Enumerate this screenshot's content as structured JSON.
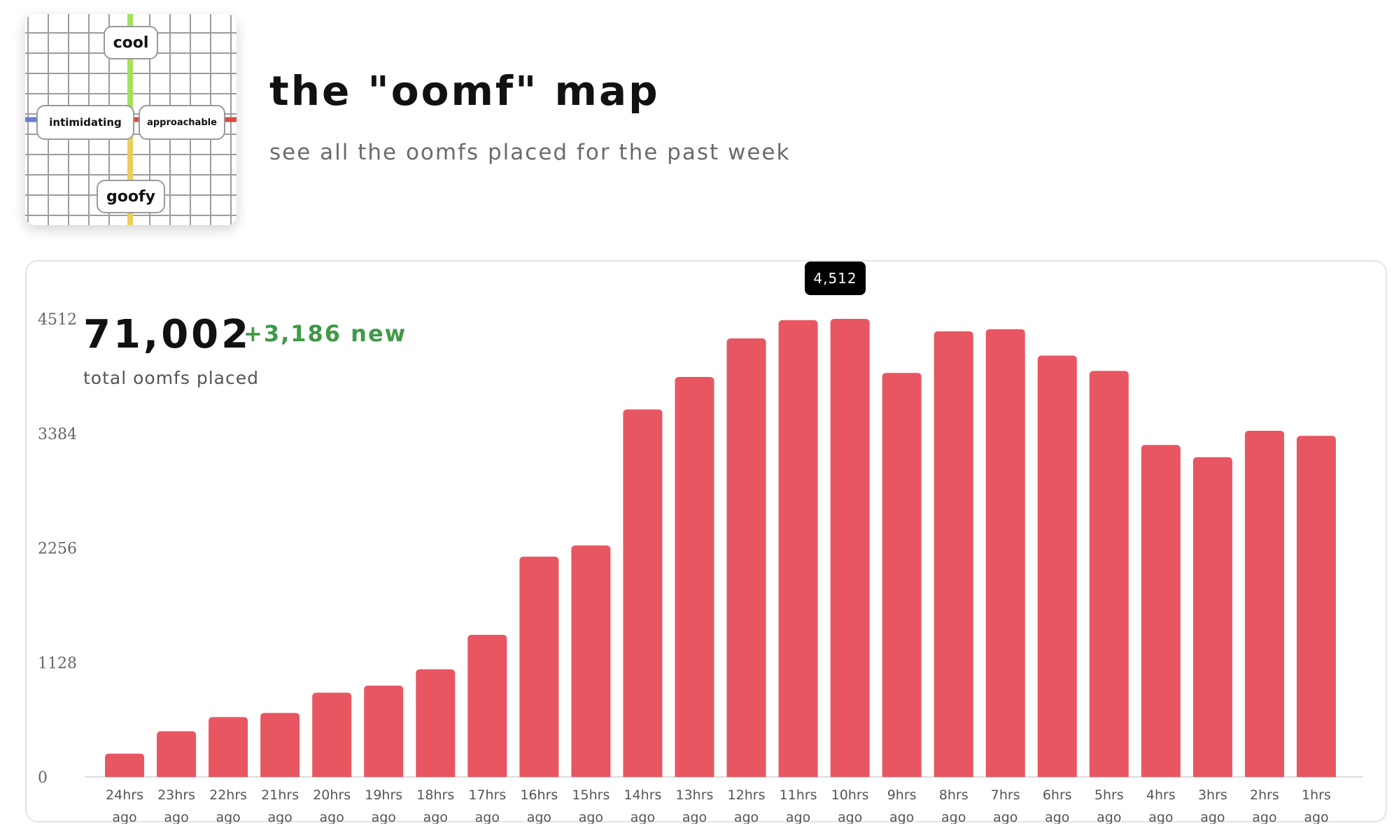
{
  "header": {
    "title": "the \"oomf\" map",
    "subtitle": "see all the oomfs placed for the past week"
  },
  "logo": {
    "top_label": "cool",
    "bottom_label": "goofy",
    "left_label": "intimidating",
    "right_label": "approachable",
    "axis_colors": {
      "top": "#a6e05a",
      "bottom": "#e8cf5a",
      "left": "#6e78d8",
      "right": "#d84b45"
    }
  },
  "summary": {
    "total": "71,002",
    "new": "+3,186 new",
    "caption": "total oomfs placed"
  },
  "tooltip": {
    "value": "4,512",
    "category": "10hrs ago"
  },
  "colors": {
    "bar": "#e75661",
    "new_text": "#3f9a47"
  },
  "chart_data": {
    "type": "bar",
    "title": "",
    "xlabel": "",
    "ylabel": "",
    "categories": [
      "24hrs ago",
      "23hrs ago",
      "22hrs ago",
      "21hrs ago",
      "20hrs ago",
      "19hrs ago",
      "18hrs ago",
      "17hrs ago",
      "16hrs ago",
      "15hrs ago",
      "14hrs ago",
      "13hrs ago",
      "12hrs ago",
      "11hrs ago",
      "10hrs ago",
      "9hrs ago",
      "8hrs ago",
      "7hrs ago",
      "6hrs ago",
      "5hrs ago",
      "4hrs ago",
      "3hrs ago",
      "2hrs ago",
      "1hrs ago"
    ],
    "values": [
      230,
      450,
      590,
      630,
      830,
      900,
      1060,
      1400,
      2170,
      2280,
      3620,
      3940,
      4320,
      4500,
      4512,
      3980,
      4390,
      4410,
      4150,
      4000,
      3270,
      3150,
      3410,
      3360
    ],
    "yticks": [
      "0",
      "1128",
      "2256",
      "3384",
      "4512"
    ],
    "ylim": [
      0,
      4512
    ],
    "grid": false,
    "legend": "none"
  }
}
